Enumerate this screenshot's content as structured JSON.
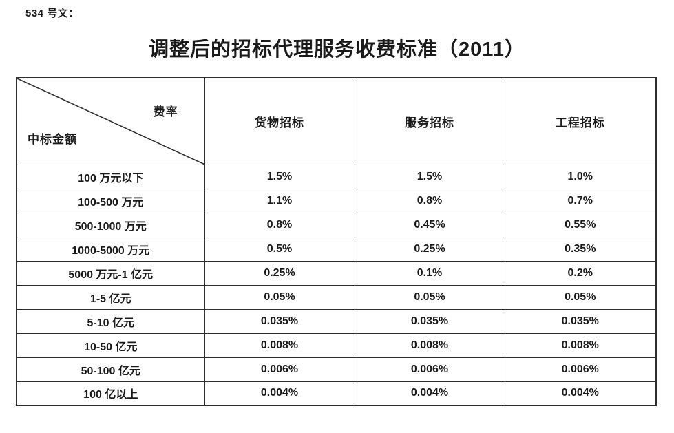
{
  "doc": {
    "label": "534 号文：",
    "title": "调整后的招标代理服务收费标准（2011）"
  },
  "table": {
    "corner": {
      "rate_label": "费率",
      "amount_label": "中标金额"
    },
    "columns": [
      "货物招标",
      "服务招标",
      "工程招标"
    ],
    "rows": [
      {
        "amount": "100 万元以下",
        "rates": [
          "1.5%",
          "1.5%",
          "1.0%"
        ]
      },
      {
        "amount": "100-500 万元",
        "rates": [
          "1.1%",
          "0.8%",
          "0.7%"
        ]
      },
      {
        "amount": "500-1000 万元",
        "rates": [
          "0.8%",
          "0.45%",
          "0.55%"
        ]
      },
      {
        "amount": "1000-5000 万元",
        "rates": [
          "0.5%",
          "0.25%",
          "0.35%"
        ]
      },
      {
        "amount": "5000 万元-1 亿元",
        "rates": [
          "0.25%",
          "0.1%",
          "0.2%"
        ]
      },
      {
        "amount": "1-5 亿元",
        "rates": [
          "0.05%",
          "0.05%",
          "0.05%"
        ]
      },
      {
        "amount": "5-10 亿元",
        "rates": [
          "0.035%",
          "0.035%",
          "0.035%"
        ]
      },
      {
        "amount": "10-50 亿元",
        "rates": [
          "0.008%",
          "0.008%",
          "0.008%"
        ]
      },
      {
        "amount": "50-100 亿元",
        "rates": [
          "0.006%",
          "0.006%",
          "0.006%"
        ]
      },
      {
        "amount": "100 亿以上",
        "rates": [
          "0.004%",
          "0.004%",
          "0.004%"
        ]
      }
    ]
  },
  "colors": {
    "text": "#1a1a1a",
    "border": "#2e2e2e",
    "background": "#ffffff"
  }
}
